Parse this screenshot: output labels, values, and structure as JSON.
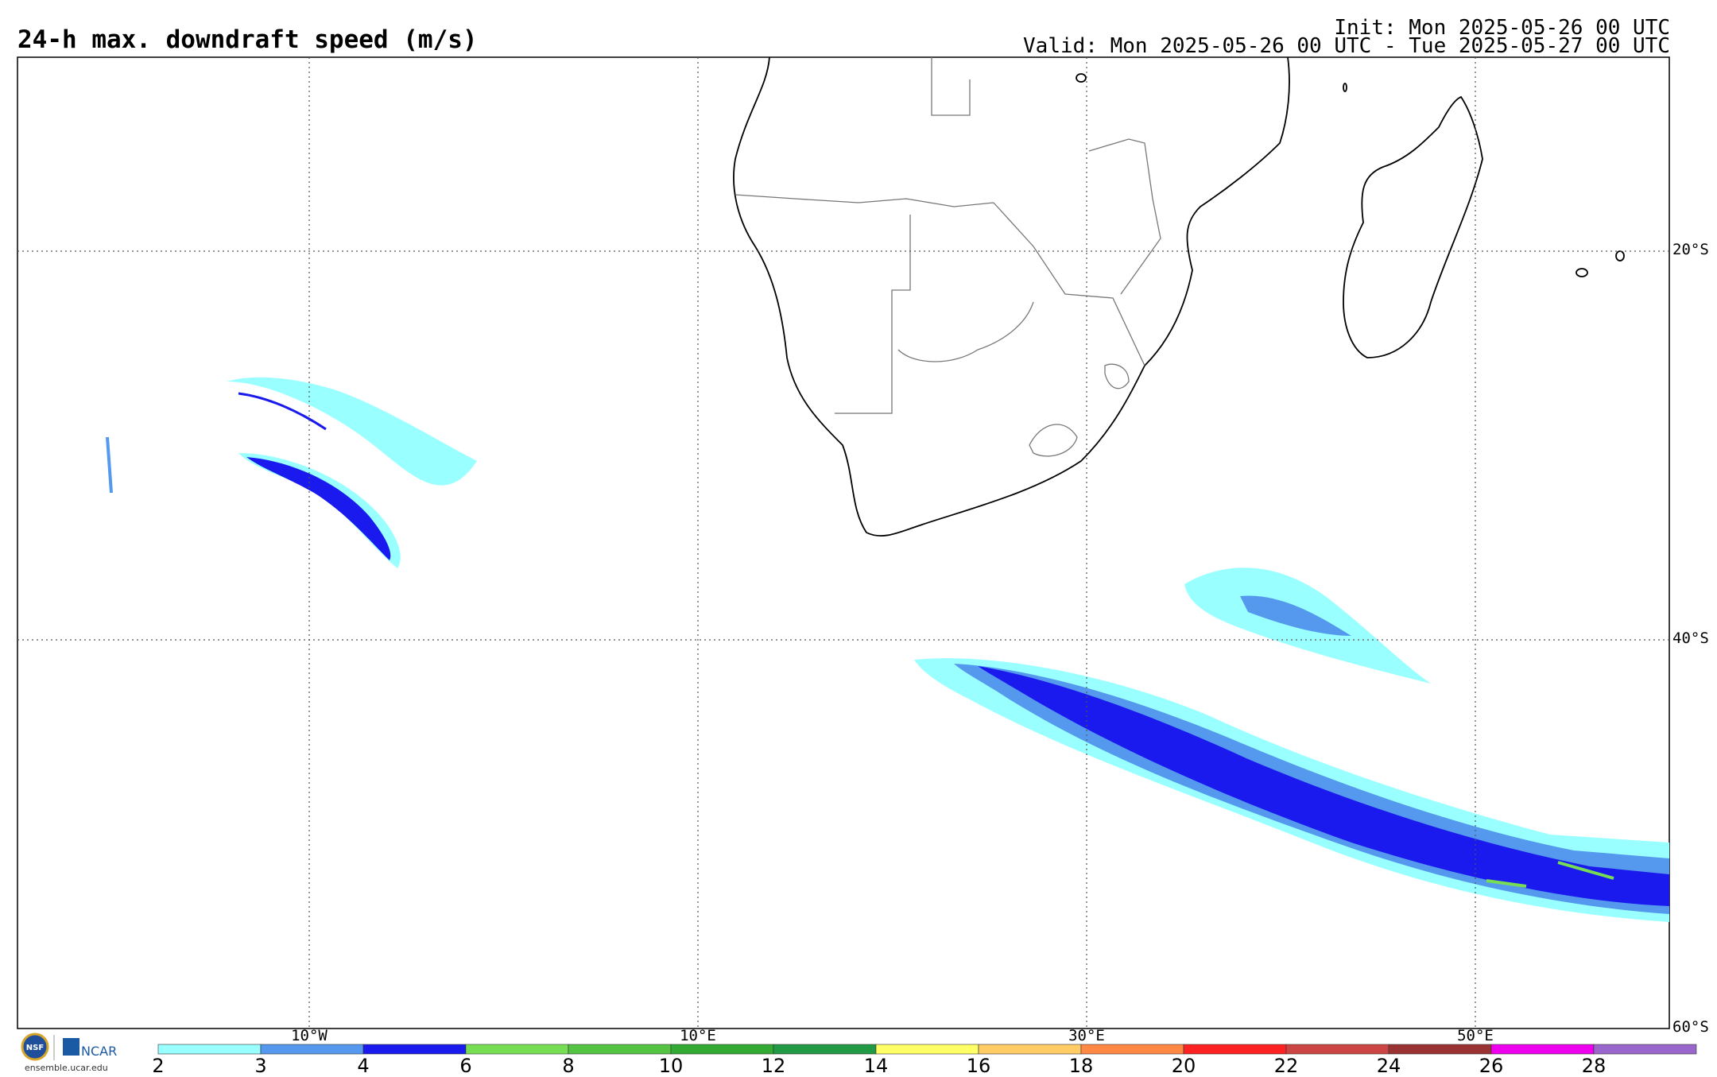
{
  "header": {
    "title": "24-h max. downdraft speed (m/s)",
    "init": "Init: Mon 2025-05-26 00 UTC",
    "valid": "Valid: Mon 2025-05-26 00 UTC - Tue 2025-05-27 00 UTC"
  },
  "map": {
    "projection": "cylindrical",
    "lon_range": [
      -25,
      60
    ],
    "lat_range": [
      -60,
      -10
    ],
    "lon_labels": [
      "10°W",
      "10°E",
      "30°E",
      "50°E"
    ],
    "lat_labels": [
      "20°S",
      "40°S",
      "60°S"
    ],
    "gridlines": true
  },
  "colorbar": {
    "labels": [
      "2",
      "3",
      "4",
      "6",
      "8",
      "10",
      "12",
      "14",
      "16",
      "18",
      "20",
      "22",
      "24",
      "26",
      "28"
    ],
    "colors": [
      "#99ffff",
      "#5599ee",
      "#1a1aee",
      "#77dd55",
      "#55c444",
      "#33aa33",
      "#229944",
      "#ffff66",
      "#ffcc66",
      "#ff8844",
      "#ff2222",
      "#cc4444",
      "#993333",
      "#ee00ee",
      "#9966cc"
    ]
  },
  "logos": {
    "nsf": "NSF",
    "ncar": "NCAR",
    "site": "ensemble.ucar.edu"
  }
}
